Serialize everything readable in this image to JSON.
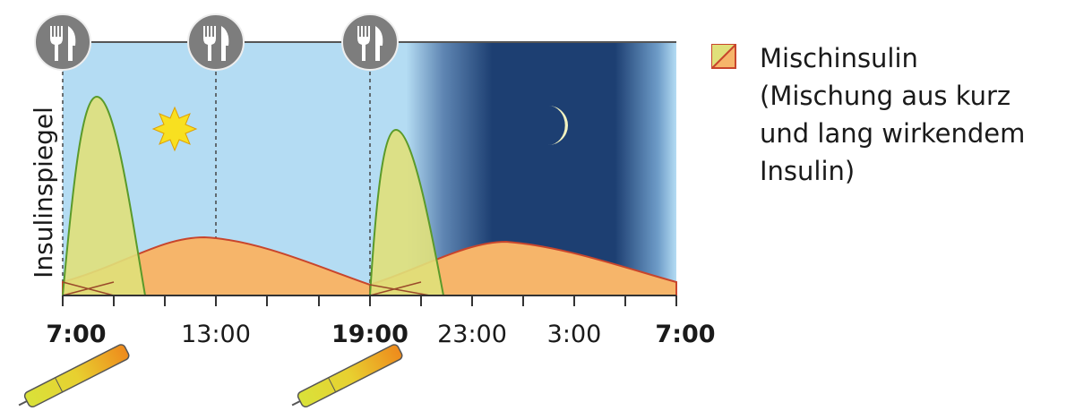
{
  "axis": {
    "y_label": "Insulinspiegel",
    "x_ticks": [
      {
        "label": "7:00",
        "bold": true
      },
      {
        "label": "13:00",
        "bold": false
      },
      {
        "label": "19:00",
        "bold": true
      },
      {
        "label": "23:00",
        "bold": false
      },
      {
        "label": "3:00",
        "bold": false
      },
      {
        "label": "7:00",
        "bold": true
      }
    ]
  },
  "legend": {
    "title": "Mischinsulin",
    "description": [
      "(Mischung aus kurz",
      "und lang wirkendem",
      "Insulin)"
    ]
  }
}
